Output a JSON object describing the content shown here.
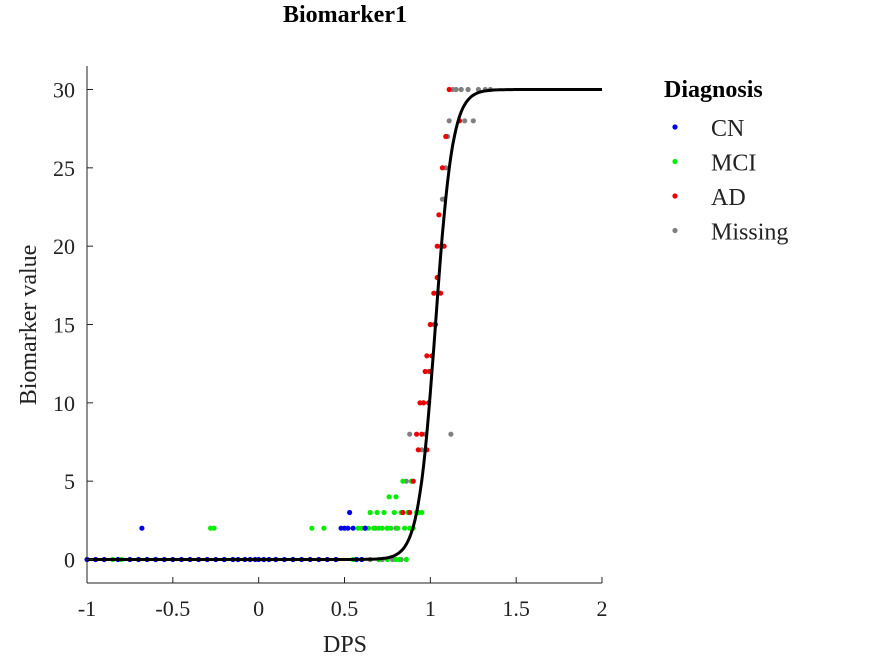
{
  "chart_data": {
    "type": "scatter",
    "title": "Biomarker1",
    "xlabel": "DPS",
    "ylabel": "Biomarker value",
    "xlim": [
      -1,
      2
    ],
    "ylim": [
      -1.5,
      31.5
    ],
    "xticks": [
      -1,
      -0.5,
      0,
      0.5,
      1,
      1.5,
      2
    ],
    "xtick_labels": [
      "-1",
      "-0.5",
      "0",
      "0.5",
      "1",
      "1.5",
      "2"
    ],
    "yticks": [
      0,
      5,
      10,
      15,
      20,
      25,
      30
    ],
    "ytick_labels": [
      "0",
      "5",
      "10",
      "15",
      "20",
      "25",
      "30"
    ],
    "grid": false,
    "legend": {
      "title": "Diagnosis",
      "position": "outside-top-right",
      "entries": [
        "CN",
        "MCI",
        "AD",
        "Missing"
      ]
    },
    "colors": {
      "CN": "#0000ee",
      "MCI": "#00ee00",
      "AD": "#ee0000",
      "Missing": "#808080",
      "curve": "#000000"
    },
    "series": [
      {
        "name": "CN",
        "points": [
          [
            -1.0,
            0
          ],
          [
            -0.95,
            0
          ],
          [
            -0.9,
            0
          ],
          [
            -0.82,
            0
          ],
          [
            -0.75,
            0
          ],
          [
            -0.7,
            0
          ],
          [
            -0.68,
            2
          ],
          [
            -0.65,
            0
          ],
          [
            -0.6,
            0
          ],
          [
            -0.55,
            0
          ],
          [
            -0.5,
            0
          ],
          [
            -0.45,
            0
          ],
          [
            -0.4,
            0
          ],
          [
            -0.35,
            0
          ],
          [
            -0.3,
            0
          ],
          [
            -0.25,
            0
          ],
          [
            -0.2,
            0
          ],
          [
            -0.15,
            0
          ],
          [
            -0.12,
            0
          ],
          [
            -0.08,
            0
          ],
          [
            -0.05,
            0
          ],
          [
            -0.02,
            0
          ],
          [
            0.0,
            0
          ],
          [
            0.03,
            0
          ],
          [
            0.06,
            0
          ],
          [
            0.1,
            0
          ],
          [
            0.15,
            0
          ],
          [
            0.2,
            0
          ],
          [
            0.25,
            0
          ],
          [
            0.3,
            0
          ],
          [
            0.35,
            0
          ],
          [
            0.4,
            0
          ],
          [
            0.45,
            0
          ],
          [
            0.48,
            2
          ],
          [
            0.5,
            2
          ],
          [
            0.52,
            2
          ],
          [
            0.53,
            3
          ],
          [
            0.55,
            2
          ],
          [
            0.57,
            0
          ],
          [
            0.6,
            0
          ],
          [
            0.62,
            2
          ]
        ]
      },
      {
        "name": "MCI",
        "points": [
          [
            -0.85,
            0
          ],
          [
            -0.8,
            0
          ],
          [
            -0.7,
            0
          ],
          [
            -0.6,
            0
          ],
          [
            -0.28,
            2
          ],
          [
            -0.26,
            2
          ],
          [
            -0.2,
            0
          ],
          [
            0.1,
            0
          ],
          [
            0.2,
            0
          ],
          [
            0.31,
            2
          ],
          [
            0.38,
            2
          ],
          [
            0.45,
            0
          ],
          [
            0.55,
            0
          ],
          [
            0.58,
            2
          ],
          [
            0.6,
            2
          ],
          [
            0.62,
            2
          ],
          [
            0.64,
            2
          ],
          [
            0.65,
            3
          ],
          [
            0.67,
            2
          ],
          [
            0.69,
            3
          ],
          [
            0.7,
            2
          ],
          [
            0.72,
            2
          ],
          [
            0.73,
            3
          ],
          [
            0.75,
            2
          ],
          [
            0.76,
            4
          ],
          [
            0.77,
            2
          ],
          [
            0.79,
            3
          ],
          [
            0.8,
            4
          ],
          [
            0.81,
            2
          ],
          [
            0.83,
            3
          ],
          [
            0.84,
            5
          ],
          [
            0.85,
            2
          ],
          [
            0.86,
            0
          ],
          [
            0.87,
            3
          ],
          [
            0.88,
            2
          ],
          [
            0.89,
            5
          ],
          [
            0.9,
            2
          ],
          [
            0.92,
            3
          ],
          [
            0.93,
            3
          ],
          [
            0.95,
            3
          ],
          [
            0.7,
            0
          ],
          [
            0.75,
            0
          ],
          [
            0.8,
            0
          ],
          [
            0.82,
            0
          ]
        ]
      },
      {
        "name": "AD",
        "points": [
          [
            0.84,
            3
          ],
          [
            0.88,
            3
          ],
          [
            0.9,
            5
          ],
          [
            0.92,
            8
          ],
          [
            0.93,
            7
          ],
          [
            0.94,
            10
          ],
          [
            0.95,
            8
          ],
          [
            0.96,
            10
          ],
          [
            0.97,
            12
          ],
          [
            0.98,
            7
          ],
          [
            0.98,
            13
          ],
          [
            0.99,
            10
          ],
          [
            1.0,
            12
          ],
          [
            1.0,
            15
          ],
          [
            1.01,
            13
          ],
          [
            1.02,
            17
          ],
          [
            1.03,
            15
          ],
          [
            1.04,
            18
          ],
          [
            1.04,
            20
          ],
          [
            1.05,
            22
          ],
          [
            1.06,
            17
          ],
          [
            1.07,
            25
          ],
          [
            1.08,
            20
          ],
          [
            1.09,
            27
          ],
          [
            1.11,
            30
          ],
          [
            1.17,
            28
          ]
        ]
      },
      {
        "name": "Missing",
        "points": [
          [
            0.62,
            2
          ],
          [
            0.65,
            0
          ],
          [
            0.68,
            2
          ],
          [
            0.72,
            0
          ],
          [
            0.75,
            2
          ],
          [
            0.78,
            0
          ],
          [
            0.8,
            2
          ],
          [
            0.83,
            0
          ],
          [
            0.86,
            5
          ],
          [
            0.88,
            8
          ],
          [
            0.9,
            5
          ],
          [
            0.93,
            3
          ],
          [
            0.95,
            7
          ],
          [
            0.96,
            10
          ],
          [
            0.97,
            8
          ],
          [
            0.99,
            12
          ],
          [
            1.01,
            13
          ],
          [
            1.02,
            15
          ],
          [
            1.04,
            17
          ],
          [
            1.06,
            20
          ],
          [
            1.07,
            23
          ],
          [
            1.08,
            23
          ],
          [
            1.09,
            25
          ],
          [
            1.1,
            27
          ],
          [
            1.11,
            28
          ],
          [
            1.12,
            8
          ],
          [
            1.13,
            30
          ],
          [
            1.15,
            30
          ],
          [
            1.18,
            30
          ],
          [
            1.2,
            28
          ],
          [
            1.22,
            30
          ],
          [
            1.25,
            28
          ],
          [
            1.28,
            30
          ],
          [
            1.32,
            30
          ],
          [
            1.35,
            30
          ]
        ]
      }
    ],
    "fit_curve": {
      "model": "sigmoid",
      "min": 0,
      "max": 30,
      "midpoint": 1.03,
      "slope": 20
    }
  }
}
